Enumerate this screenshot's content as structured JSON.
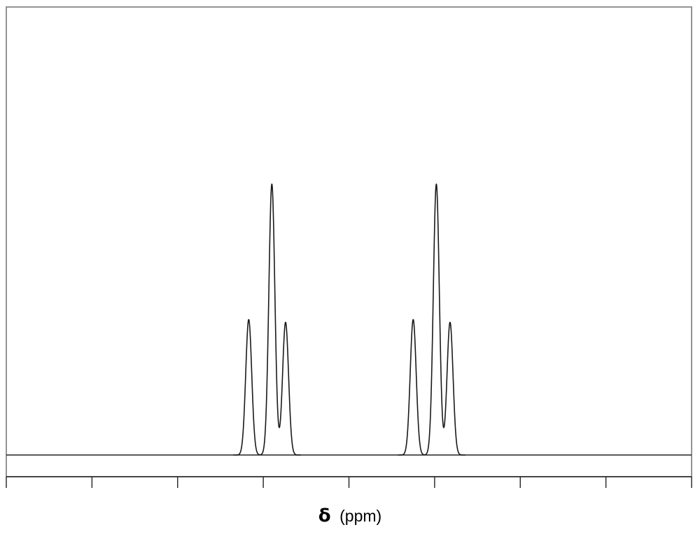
{
  "chart_data": {
    "type": "line",
    "title": "",
    "xlabel_symbol": "δ",
    "xlabel_unit": "(ppm)",
    "ylabel": "",
    "x_axis_reversed": true,
    "xlim": [
      8,
      0
    ],
    "ylim": [
      0,
      100
    ],
    "x_ticks": [
      8,
      7,
      6,
      5,
      4,
      3,
      2,
      1,
      0
    ],
    "tick_labels_shown": false,
    "grid": false,
    "legend": "none",
    "peak_width_ppm": 0.035,
    "series": [
      {
        "values": [
          {
            "x": 5.17,
            "y": 50
          },
          {
            "x": 4.9,
            "y": 100
          },
          {
            "x": 4.74,
            "y": 49
          }
        ]
      },
      {
        "values": [
          {
            "x": 3.25,
            "y": 50
          },
          {
            "x": 2.98,
            "y": 100
          },
          {
            "x": 2.82,
            "y": 49
          }
        ]
      }
    ]
  }
}
